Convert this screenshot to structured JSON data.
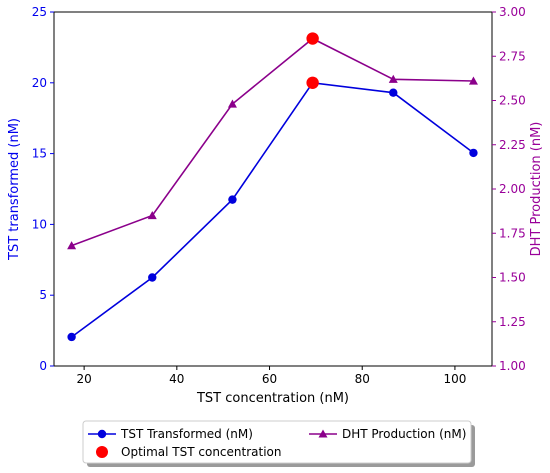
{
  "chart_data": {
    "type": "line",
    "xlabel": "TST concentration (nM)",
    "ylabel_left": "TST transformed (nM)",
    "ylabel_right": "DHT Production (nM)",
    "xlim": [
      13.5,
      108
    ],
    "ylim_left": [
      0,
      25
    ],
    "ylim_right": [
      1.0,
      3.0
    ],
    "x_ticks": [
      20,
      40,
      60,
      80,
      100
    ],
    "y_left_ticks": [
      0,
      5,
      10,
      15,
      20,
      25
    ],
    "y_right_ticks": [
      "1.00",
      "1.25",
      "1.50",
      "1.75",
      "2.00",
      "2.25",
      "2.50",
      "2.75",
      "3.00"
    ],
    "grid": false,
    "legend_position": "bottom-center",
    "series": [
      {
        "name": "TST Transformed (nM)",
        "axis": "left",
        "marker": "circle",
        "color": "#0000dd",
        "x": [
          17.3,
          34.7,
          52.0,
          69.3,
          86.7,
          104.0
        ],
        "y": [
          2.05,
          6.25,
          11.75,
          20.0,
          19.3,
          15.05
        ]
      },
      {
        "name": "DHT Production (nM)",
        "axis": "right",
        "marker": "triangle",
        "color": "#8b008b",
        "x": [
          17.3,
          34.7,
          52.0,
          69.3,
          86.7,
          104.0
        ],
        "y": [
          1.68,
          1.85,
          2.48,
          2.85,
          2.62,
          2.61
        ]
      }
    ],
    "optimal": {
      "name": "Optimal TST concentration",
      "color": "#ff0000",
      "x": 69.3,
      "y_left": 20.0,
      "y_right": 2.85
    },
    "axis_colors": {
      "left": "#0000ee",
      "right": "#990099",
      "bottom": "#000000"
    }
  }
}
